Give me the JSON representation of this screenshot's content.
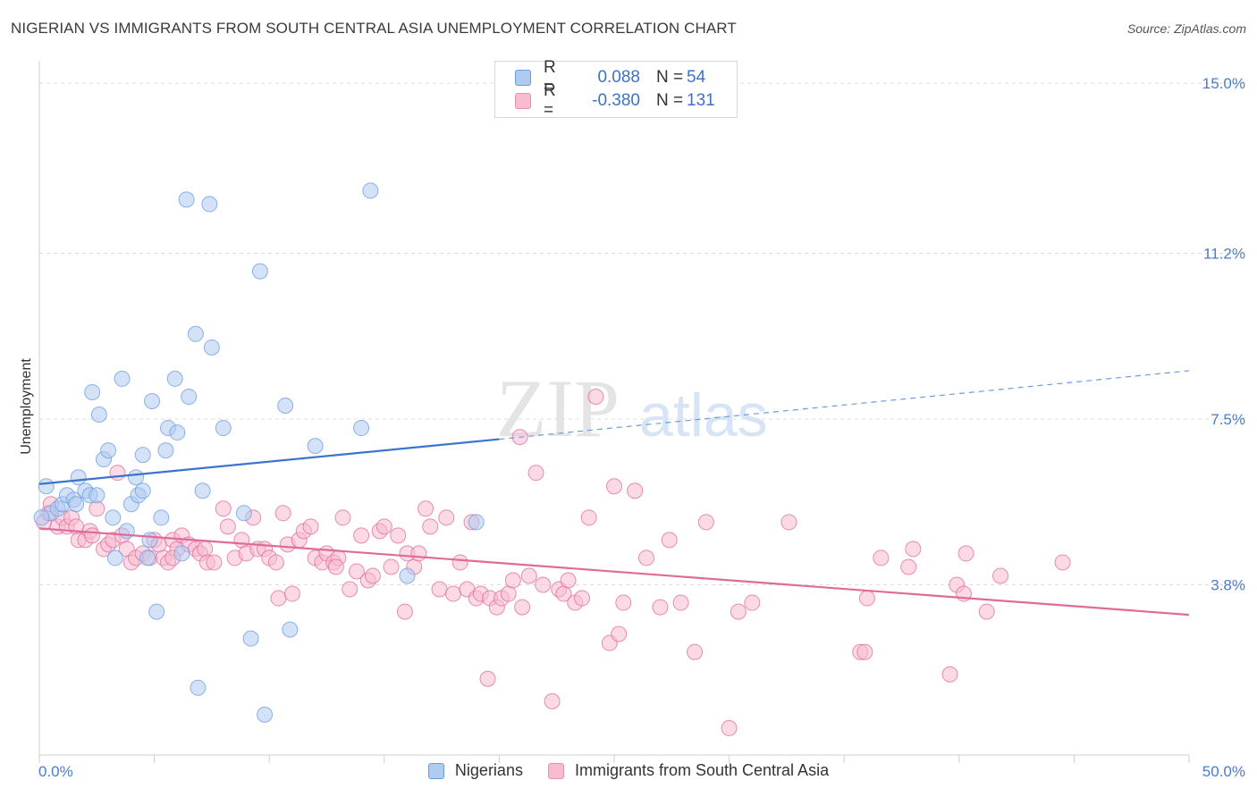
{
  "title": "NIGERIAN VS IMMIGRANTS FROM SOUTH CENTRAL ASIA UNEMPLOYMENT CORRELATION CHART",
  "source": "Source: ZipAtlas.com",
  "watermark": {
    "zip": "ZIP",
    "atlas": "atlas"
  },
  "legend": {
    "r_label": "R =",
    "n_label": "N =",
    "series": [
      {
        "name": "Nigerians",
        "r": "0.088",
        "n": "54",
        "fill": "#aecbf0",
        "stroke": "#6b9be0"
      },
      {
        "name": "Immigrants from South Central Asia",
        "r": "-0.380",
        "n": "131",
        "fill": "#f7bcd0",
        "stroke": "#eb8fae"
      }
    ]
  },
  "chart_data": {
    "type": "scatter",
    "title": "NIGERIAN VS IMMIGRANTS FROM SOUTH CENTRAL ASIA UNEMPLOYMENT CORRELATION CHART",
    "xlabel": "",
    "ylabel": "Unemployment",
    "xlim": [
      0,
      50
    ],
    "ylim": [
      0,
      15.5
    ],
    "x_tick_labels": [
      "0.0%",
      "50.0%"
    ],
    "y_ticks": [
      {
        "value": 3.8,
        "label": "3.8%"
      },
      {
        "value": 7.5,
        "label": "7.5%"
      },
      {
        "value": 11.2,
        "label": "11.2%"
      },
      {
        "value": 15.0,
        "label": "15.0%"
      }
    ],
    "grid": true,
    "series": [
      {
        "name": "Nigerians",
        "color": "#6b9be0",
        "fill": "#aecbf0",
        "trend": {
          "x0": 0,
          "y0": 6.05,
          "x1": 20,
          "y1": 7.05,
          "dashed_to_x": 50,
          "dashed_to_y": 8.58
        },
        "points": [
          [
            0.3,
            6.0
          ],
          [
            0.5,
            5.4
          ],
          [
            0.8,
            5.5
          ],
          [
            1.0,
            5.6
          ],
          [
            1.2,
            5.8
          ],
          [
            1.5,
            5.7
          ],
          [
            1.6,
            5.6
          ],
          [
            1.7,
            6.2
          ],
          [
            2.0,
            5.9
          ],
          [
            2.2,
            5.8
          ],
          [
            2.5,
            5.8
          ],
          [
            2.3,
            8.1
          ],
          [
            2.6,
            7.6
          ],
          [
            2.8,
            6.6
          ],
          [
            3.0,
            6.8
          ],
          [
            3.2,
            5.3
          ],
          [
            3.3,
            4.4
          ],
          [
            3.6,
            8.4
          ],
          [
            3.8,
            5.0
          ],
          [
            4.0,
            5.6
          ],
          [
            4.2,
            6.2
          ],
          [
            4.3,
            5.8
          ],
          [
            4.5,
            5.9
          ],
          [
            4.5,
            6.7
          ],
          [
            4.7,
            4.4
          ],
          [
            4.8,
            4.8
          ],
          [
            4.9,
            7.9
          ],
          [
            5.1,
            3.2
          ],
          [
            5.3,
            5.3
          ],
          [
            5.5,
            6.8
          ],
          [
            5.6,
            7.3
          ],
          [
            5.9,
            8.4
          ],
          [
            6.0,
            7.2
          ],
          [
            6.2,
            4.5
          ],
          [
            6.4,
            12.4
          ],
          [
            6.5,
            8.0
          ],
          [
            6.8,
            9.4
          ],
          [
            6.9,
            1.5
          ],
          [
            7.1,
            5.9
          ],
          [
            7.4,
            12.3
          ],
          [
            7.5,
            9.1
          ],
          [
            8.0,
            7.3
          ],
          [
            8.9,
            5.4
          ],
          [
            9.2,
            2.6
          ],
          [
            9.6,
            10.8
          ],
          [
            9.8,
            0.9
          ],
          [
            10.7,
            7.8
          ],
          [
            10.9,
            2.8
          ],
          [
            12.0,
            6.9
          ],
          [
            14.0,
            7.3
          ],
          [
            14.4,
            12.6
          ],
          [
            16.0,
            4.0
          ],
          [
            19.0,
            5.2
          ],
          [
            0.1,
            5.3
          ]
        ]
      },
      {
        "name": "Immigrants from South Central Asia",
        "color": "#e06a99",
        "fill": "#f7bcd0",
        "trend": {
          "x0": 0,
          "y0": 5.06,
          "x1": 50,
          "y1": 3.13
        },
        "points": [
          [
            0.2,
            5.2
          ],
          [
            0.4,
            5.4
          ],
          [
            0.5,
            5.6
          ],
          [
            0.8,
            5.1
          ],
          [
            1.0,
            5.3
          ],
          [
            1.2,
            5.1
          ],
          [
            1.4,
            5.3
          ],
          [
            1.6,
            5.1
          ],
          [
            1.7,
            4.8
          ],
          [
            2.0,
            4.8
          ],
          [
            2.2,
            5.0
          ],
          [
            2.3,
            4.9
          ],
          [
            2.5,
            5.5
          ],
          [
            2.8,
            4.6
          ],
          [
            3.0,
            4.7
          ],
          [
            3.2,
            4.8
          ],
          [
            3.4,
            6.3
          ],
          [
            3.6,
            4.9
          ],
          [
            3.8,
            4.6
          ],
          [
            4.0,
            4.3
          ],
          [
            4.2,
            4.4
          ],
          [
            4.5,
            4.5
          ],
          [
            4.8,
            4.4
          ],
          [
            5.0,
            4.8
          ],
          [
            5.2,
            4.7
          ],
          [
            5.4,
            4.4
          ],
          [
            5.6,
            4.3
          ],
          [
            5.8,
            4.8
          ],
          [
            6.0,
            4.6
          ],
          [
            6.2,
            4.9
          ],
          [
            6.5,
            4.7
          ],
          [
            6.8,
            4.6
          ],
          [
            7.0,
            4.5
          ],
          [
            7.2,
            4.6
          ],
          [
            7.3,
            4.3
          ],
          [
            7.6,
            4.3
          ],
          [
            8.0,
            5.5
          ],
          [
            8.2,
            5.1
          ],
          [
            8.5,
            4.4
          ],
          [
            8.8,
            4.8
          ],
          [
            9.0,
            4.5
          ],
          [
            9.3,
            5.3
          ],
          [
            9.5,
            4.6
          ],
          [
            9.8,
            4.6
          ],
          [
            10.0,
            4.4
          ],
          [
            10.3,
            4.3
          ],
          [
            10.4,
            3.5
          ],
          [
            10.6,
            5.4
          ],
          [
            10.8,
            4.7
          ],
          [
            11.0,
            3.6
          ],
          [
            11.3,
            4.8
          ],
          [
            11.5,
            5.0
          ],
          [
            11.8,
            5.1
          ],
          [
            12.0,
            4.4
          ],
          [
            12.3,
            4.3
          ],
          [
            12.5,
            4.5
          ],
          [
            12.8,
            4.3
          ],
          [
            13.0,
            4.4
          ],
          [
            13.2,
            5.3
          ],
          [
            13.5,
            3.7
          ],
          [
            13.8,
            4.1
          ],
          [
            14.0,
            4.9
          ],
          [
            14.3,
            3.9
          ],
          [
            14.5,
            4.0
          ],
          [
            14.8,
            5.0
          ],
          [
            15.0,
            5.1
          ],
          [
            15.3,
            4.2
          ],
          [
            15.6,
            4.9
          ],
          [
            15.9,
            3.2
          ],
          [
            16.0,
            4.5
          ],
          [
            16.3,
            4.2
          ],
          [
            16.5,
            4.5
          ],
          [
            16.8,
            5.5
          ],
          [
            17.0,
            5.1
          ],
          [
            17.4,
            3.7
          ],
          [
            17.7,
            5.3
          ],
          [
            18.0,
            3.6
          ],
          [
            18.3,
            4.3
          ],
          [
            18.6,
            3.7
          ],
          [
            18.8,
            5.2
          ],
          [
            19.0,
            3.5
          ],
          [
            19.2,
            3.6
          ],
          [
            19.5,
            1.7
          ],
          [
            19.6,
            3.5
          ],
          [
            19.9,
            3.3
          ],
          [
            20.1,
            3.5
          ],
          [
            20.4,
            3.6
          ],
          [
            20.6,
            3.9
          ],
          [
            20.9,
            7.1
          ],
          [
            21.0,
            3.3
          ],
          [
            21.3,
            4.0
          ],
          [
            21.6,
            6.3
          ],
          [
            21.9,
            3.8
          ],
          [
            22.3,
            1.2
          ],
          [
            22.6,
            3.7
          ],
          [
            22.8,
            3.6
          ],
          [
            23.0,
            3.9
          ],
          [
            23.3,
            3.4
          ],
          [
            23.6,
            3.5
          ],
          [
            23.9,
            5.3
          ],
          [
            24.2,
            8.0
          ],
          [
            24.8,
            2.5
          ],
          [
            25.2,
            2.7
          ],
          [
            25.4,
            3.4
          ],
          [
            25.9,
            5.9
          ],
          [
            26.4,
            4.4
          ],
          [
            27.0,
            3.3
          ],
          [
            27.4,
            4.8
          ],
          [
            27.9,
            3.4
          ],
          [
            28.5,
            2.3
          ],
          [
            29.0,
            5.2
          ],
          [
            30.0,
            0.6
          ],
          [
            30.4,
            3.2
          ],
          [
            31.0,
            3.4
          ],
          [
            32.6,
            5.2
          ],
          [
            35.7,
            2.3
          ],
          [
            35.9,
            2.3
          ],
          [
            36.0,
            3.5
          ],
          [
            36.6,
            4.4
          ],
          [
            37.8,
            4.2
          ],
          [
            38.0,
            4.6
          ],
          [
            39.6,
            1.8
          ],
          [
            39.9,
            3.8
          ],
          [
            40.2,
            3.6
          ],
          [
            40.3,
            4.5
          ],
          [
            41.2,
            3.2
          ],
          [
            41.8,
            4.0
          ],
          [
            44.5,
            4.3
          ],
          [
            5.8,
            4.4
          ],
          [
            12.9,
            4.2
          ],
          [
            25.0,
            6.0
          ]
        ]
      }
    ]
  }
}
